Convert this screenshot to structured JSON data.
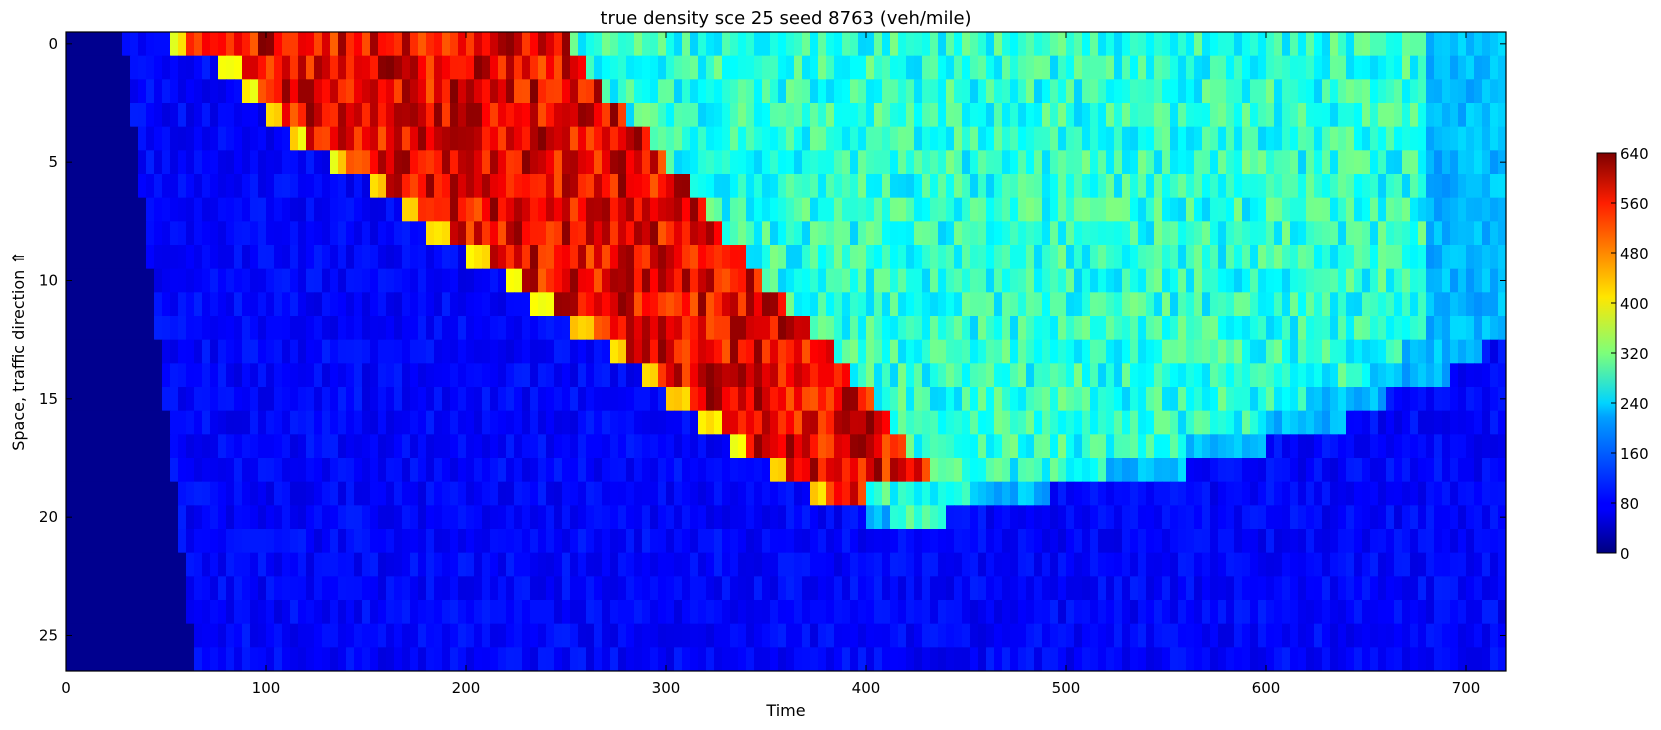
{
  "chart_data": {
    "type": "heatmap",
    "title": "true density sce 25 seed 8763 (veh/mile)",
    "xlabel": "Time",
    "ylabel": "Space, traffic direction ⇑",
    "xlim": [
      0,
      720
    ],
    "ylim": [
      -0.5,
      26.5
    ],
    "y_inverted": true,
    "x_ticks": [
      0,
      100,
      200,
      300,
      400,
      500,
      600,
      700
    ],
    "y_ticks": [
      0,
      5,
      10,
      15,
      20,
      25
    ],
    "colormap": "jet",
    "colorbar": {
      "vmin": 0,
      "vmax": 640,
      "ticks": [
        0,
        80,
        160,
        240,
        320,
        400,
        480,
        560,
        640
      ]
    },
    "n_space_cells": 27,
    "congestion_regions": {
      "description": "Per space cell (row 0..26): start of red jam wave, start of green queue, and recovery (back to free flow) times; null = no congestion",
      "red_start": [
        60,
        85,
        95,
        108,
        120,
        140,
        160,
        175,
        190,
        210,
        228,
        242,
        262,
        280,
        295,
        310,
        325,
        340,
        360,
        380,
        null,
        null,
        null,
        null,
        null,
        null,
        null
      ],
      "green_start": [
        250,
        258,
        268,
        280,
        290,
        300,
        310,
        318,
        328,
        338,
        348,
        358,
        370,
        382,
        392,
        402,
        410,
        420,
        430,
        400,
        412,
        null,
        null,
        null,
        null,
        null,
        null
      ],
      "recovery": [
        720,
        720,
        720,
        720,
        720,
        720,
        720,
        720,
        720,
        720,
        720,
        720,
        720,
        705,
        690,
        660,
        640,
        600,
        560,
        490,
        440,
        null,
        null,
        null,
        null,
        null,
        null
      ],
      "jam_density": 600,
      "queue_density": 300,
      "free_flow_density": 80
    },
    "grid": false
  }
}
